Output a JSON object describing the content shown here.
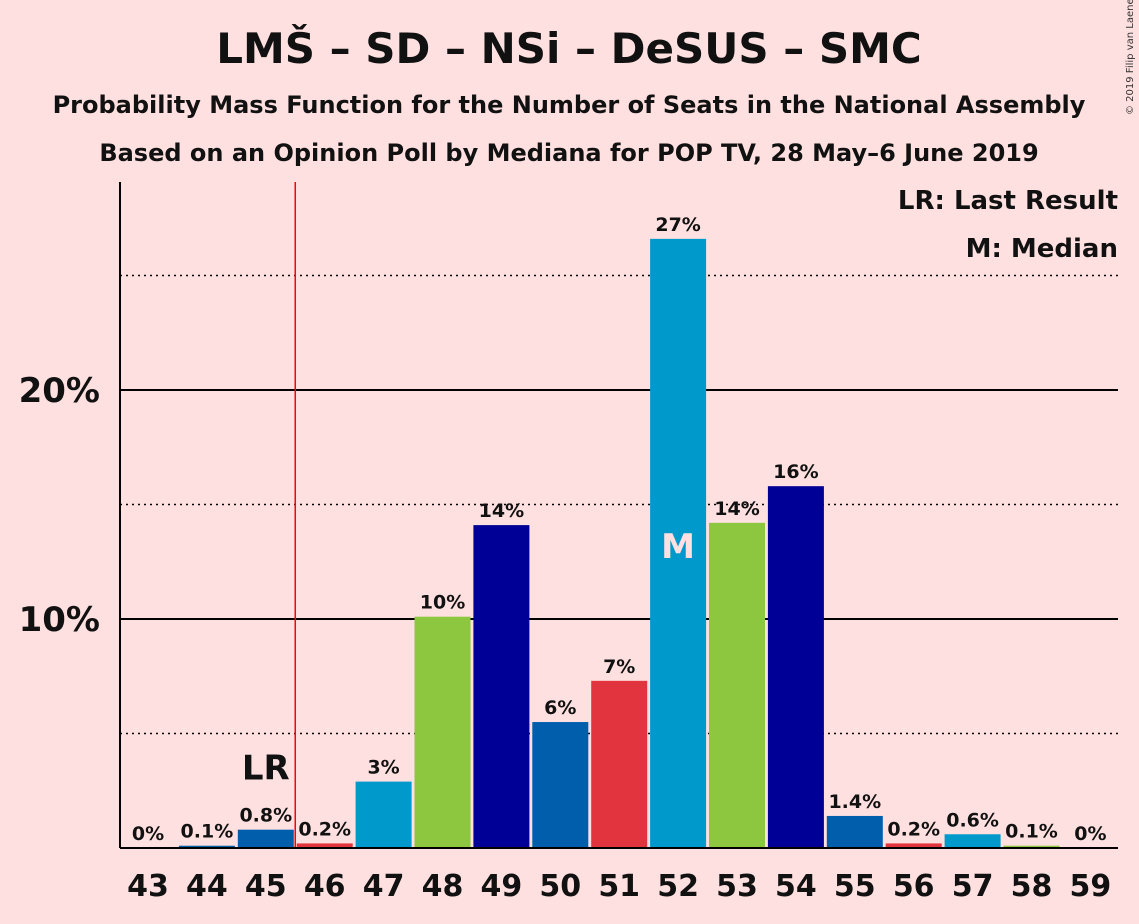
{
  "title": "LMŠ – SD – NSi – DeSUS – SMC",
  "subtitle1": "Probability Mass Function for the Number of Seats in the National Assembly",
  "subtitle2": "Based on an Opinion Poll by Mediana for POP TV, 28 May–6 June 2019",
  "copyright": "© 2019 Filip van Laenen",
  "legend": {
    "lr": "LR: Last Result",
    "m": "M: Median"
  },
  "markers": {
    "lr_text": "LR",
    "median_text": "M",
    "last_result_seat": 45.5,
    "median_seat": "52"
  },
  "colors": {
    "background": "#ffe0e0",
    "lr_line": "#ff0000",
    "parties": [
      "#005ead",
      "#e2343e",
      "#0099cc",
      "#8dc63f",
      "#000096"
    ]
  },
  "chart_data": {
    "type": "bar",
    "title": "LMŠ – SD – NSi – DeSUS – SMC",
    "xlabel": "",
    "ylabel": "",
    "ylim": [
      0,
      29
    ],
    "yticks_major": [
      10,
      20
    ],
    "ytick_labels": [
      "10%",
      "20%"
    ],
    "yticks_minor": [
      5,
      15,
      25
    ],
    "categories": [
      "43",
      "44",
      "45",
      "46",
      "47",
      "48",
      "49",
      "50",
      "51",
      "52",
      "53",
      "54",
      "55",
      "56",
      "57",
      "58",
      "59"
    ],
    "values": [
      0,
      0.1,
      0.8,
      0.2,
      2.9,
      10.1,
      14.1,
      5.5,
      7.3,
      26.6,
      14.2,
      15.8,
      1.4,
      0.2,
      0.6,
      0.1,
      0
    ],
    "labels": [
      "0%",
      "0.1%",
      "0.8%",
      "0.2%",
      "3%",
      "10%",
      "14%",
      "6%",
      "7%",
      "27%",
      "14%",
      "16%",
      "1.4%",
      "0.2%",
      "0.6%",
      "0.1%",
      "0%"
    ],
    "bar_colors": [
      "#005ead",
      "#005ead",
      "#005ead",
      "#e2343e",
      "#0099cc",
      "#8dc63f",
      "#000096",
      "#005ead",
      "#e2343e",
      "#0099cc",
      "#8dc63f",
      "#000096",
      "#005ead",
      "#e2343e",
      "#0099cc",
      "#8dc63f",
      "#000096"
    ],
    "grid": true
  }
}
